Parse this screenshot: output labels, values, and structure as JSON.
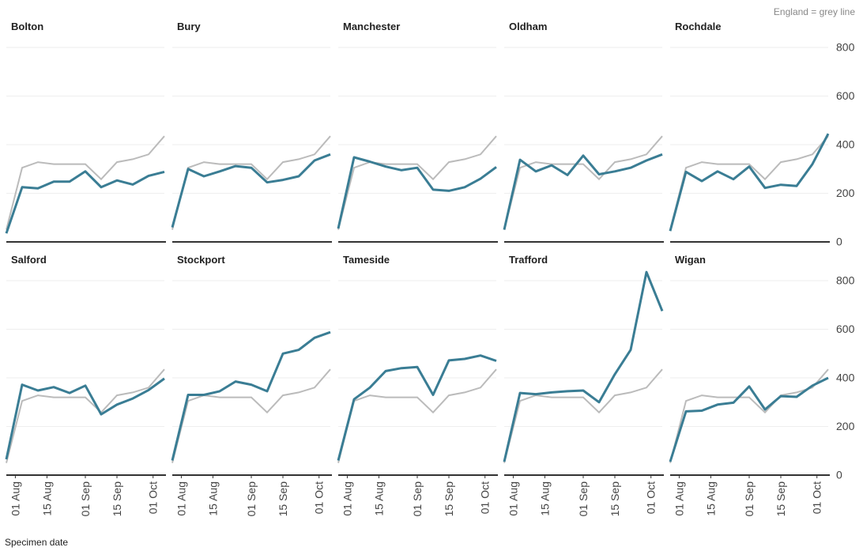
{
  "chart_data": {
    "type": "line",
    "note": "England = grey line",
    "xlabel": "Specimen date",
    "x": [
      "07-28",
      "08-04",
      "08-11",
      "08-18",
      "08-25",
      "09-01",
      "09-08",
      "09-15",
      "09-22",
      "09-29",
      "10-06"
    ],
    "xlim": [
      "07-28",
      "10-06"
    ],
    "xticks": [
      {
        "value": "08-01",
        "label": "01 Aug"
      },
      {
        "value": "08-15",
        "label": "15 Aug"
      },
      {
        "value": "09-01",
        "label": "01 Sep"
      },
      {
        "value": "09-15",
        "label": "15 Sep"
      },
      {
        "value": "10-01",
        "label": "01 Oct"
      }
    ],
    "ylim": [
      0,
      800
    ],
    "yticks": [
      0,
      200,
      400,
      600,
      800
    ],
    "grid": true,
    "color": "#3a7d94",
    "reference": {
      "color": "#bbbbbb",
      "values": [
        50,
        305,
        328,
        320,
        320,
        320,
        258,
        328,
        340,
        360,
        435
      ]
    },
    "panels": [
      {
        "title": "Bolton",
        "values": [
          35,
          225,
          220,
          248,
          248,
          290,
          225,
          253,
          236,
          272,
          288
        ]
      },
      {
        "title": "Bury",
        "values": [
          60,
          300,
          270,
          290,
          312,
          305,
          245,
          255,
          270,
          335,
          360
        ]
      },
      {
        "title": "Manchester",
        "values": [
          55,
          348,
          330,
          310,
          295,
          305,
          215,
          210,
          225,
          260,
          308
        ]
      },
      {
        "title": "Oldham",
        "values": [
          50,
          338,
          290,
          315,
          275,
          355,
          278,
          290,
          305,
          335,
          360
        ]
      },
      {
        "title": "Rochdale",
        "values": [
          45,
          288,
          250,
          290,
          258,
          310,
          222,
          235,
          230,
          320,
          445
        ]
      },
      {
        "title": "Salford",
        "values": [
          65,
          372,
          348,
          362,
          338,
          368,
          250,
          290,
          315,
          350,
          397
        ]
      },
      {
        "title": "Stockport",
        "values": [
          60,
          330,
          330,
          345,
          385,
          372,
          345,
          500,
          515,
          565,
          588
        ]
      },
      {
        "title": "Tameside",
        "values": [
          60,
          312,
          360,
          428,
          440,
          445,
          330,
          472,
          478,
          492,
          470
        ]
      },
      {
        "title": "Trafford",
        "values": [
          55,
          338,
          333,
          340,
          345,
          348,
          300,
          415,
          515,
          835,
          675
        ]
      },
      {
        "title": "Wigan",
        "values": [
          55,
          262,
          265,
          290,
          298,
          365,
          270,
          325,
          322,
          368,
          400
        ]
      }
    ]
  }
}
